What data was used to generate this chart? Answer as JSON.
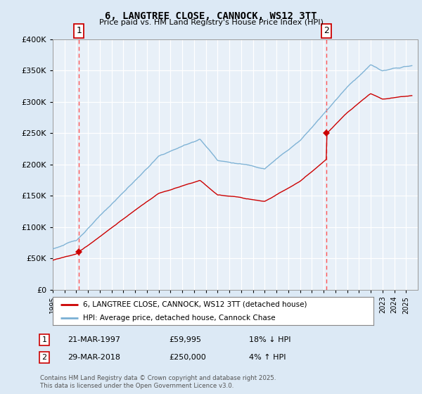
{
  "title1": "6, LANGTREE CLOSE, CANNOCK, WS12 3TT",
  "title2": "Price paid vs. HM Land Registry's House Price Index (HPI)",
  "legend_line1": "6, LANGTREE CLOSE, CANNOCK, WS12 3TT (detached house)",
  "legend_line2": "HPI: Average price, detached house, Cannock Chase",
  "sale1_label": "1",
  "sale1_date": "21-MAR-1997",
  "sale1_price": "£59,995",
  "sale1_hpi": "18% ↓ HPI",
  "sale2_label": "2",
  "sale2_date": "29-MAR-2018",
  "sale2_price": "£250,000",
  "sale2_hpi": "4% ↑ HPI",
  "footer": "Contains HM Land Registry data © Crown copyright and database right 2025.\nThis data is licensed under the Open Government Licence v3.0.",
  "hpi_color": "#7ab0d4",
  "price_color": "#cc0000",
  "marker_color": "#cc0000",
  "vline_color": "#ff5555",
  "bg_color": "#dce9f5",
  "plot_bg": "#e8f0f8",
  "grid_color": "#ffffff",
  "ylim": [
    0,
    400000
  ],
  "yticks": [
    0,
    50000,
    100000,
    150000,
    200000,
    250000,
    300000,
    350000,
    400000
  ],
  "xlim_start": 1995,
  "xlim_end": 2026,
  "vline1_x": 1997.22,
  "vline2_x": 2018.25,
  "sale1_price_val": 59995,
  "sale2_price_val": 250000
}
